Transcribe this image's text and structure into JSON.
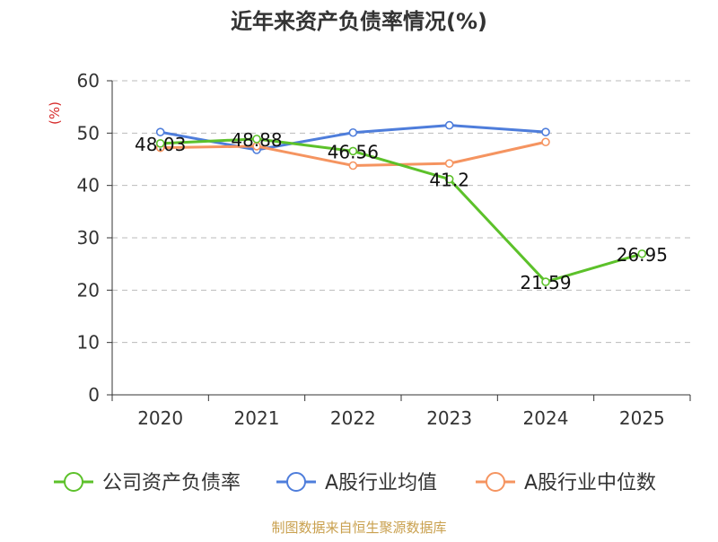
{
  "chart_data": {
    "type": "line",
    "title": "近年来资产负债率情况(%)",
    "ylabel": "(%)",
    "xlabel": "",
    "categories": [
      "2020",
      "2021",
      "2022",
      "2023",
      "2024",
      "2025"
    ],
    "ylim": [
      0,
      60
    ],
    "yticks": [
      0,
      10,
      20,
      30,
      40,
      50,
      60
    ],
    "grid": true,
    "legend_position": "bottom",
    "series": [
      {
        "name": "公司资产负债率",
        "color": "#5cc12a",
        "values": [
          48.03,
          48.88,
          46.56,
          41.2,
          21.59,
          26.95
        ],
        "labels": [
          "48.03",
          "48.88",
          "46.56",
          "41.2",
          "21.59",
          "26.95"
        ],
        "show_labels": true
      },
      {
        "name": "A股行业均值",
        "color": "#4e7ddb",
        "values": [
          50.2,
          46.8,
          50.1,
          51.5,
          50.2,
          null
        ],
        "show_labels": false
      },
      {
        "name": "A股行业中位数",
        "color": "#f59460",
        "values": [
          47.2,
          47.5,
          43.8,
          44.2,
          48.3,
          null
        ],
        "show_labels": false
      }
    ],
    "source": "制图数据来自恒生聚源数据库",
    "colors": {
      "title": "#333333",
      "ylabel": "#d62c2c",
      "axis": "#333333",
      "grid": "#bbbbbb",
      "source": "#c9a04e"
    }
  }
}
